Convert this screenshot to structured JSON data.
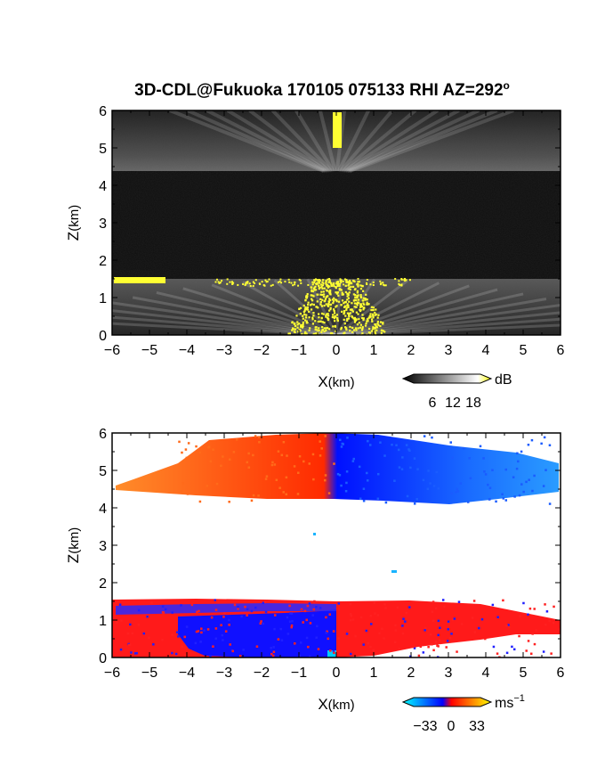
{
  "chart_data": [
    {
      "type": "heatmap",
      "title": "3D-CDL@Fukuoka 170105 075133 RHI AZ=292",
      "title_superscript": "o",
      "xlabel_main": "X",
      "xlabel_unit": "(km)",
      "ylabel_main": "Z",
      "ylabel_unit": "(km)",
      "xlim": [
        -6,
        6
      ],
      "ylim": [
        0,
        6
      ],
      "xticks": [
        "-6",
        "-5",
        "-4",
        "-3",
        "-2",
        "-1",
        "0",
        "1",
        "2",
        "3",
        "4",
        "5",
        "6"
      ],
      "yticks": [
        "0",
        "1",
        "2",
        "3",
        "4",
        "5",
        "6"
      ],
      "colorbar": {
        "unit": "dB",
        "ticks": [
          "6",
          "12",
          "18"
        ],
        "colors": [
          "#000000",
          "#ffffff",
          "#ffff00"
        ]
      },
      "layers": [
        {
          "kind": "noise",
          "z_range": [
            1.5,
            4.4
          ],
          "level": "low"
        },
        {
          "kind": "cloud",
          "z_range": [
            4.4,
            6.0
          ],
          "level": "medium"
        },
        {
          "kind": "boundary-layer",
          "z_range": [
            0.0,
            1.5
          ],
          "level": "high"
        }
      ]
    },
    {
      "type": "heatmap",
      "xlabel_main": "X",
      "xlabel_unit": "(km)",
      "ylabel_main": "Z",
      "ylabel_unit": "(km)",
      "xlim": [
        -6,
        6
      ],
      "ylim": [
        0,
        6
      ],
      "xticks": [
        "-6",
        "-5",
        "-4",
        "-3",
        "-2",
        "-1",
        "0",
        "1",
        "2",
        "3",
        "4",
        "5",
        "6"
      ],
      "yticks": [
        "0",
        "1",
        "2",
        "3",
        "4",
        "5",
        "6"
      ],
      "colorbar": {
        "unit": "ms",
        "unit_superscript": "−1",
        "ticks": [
          "−33",
          "0",
          "33"
        ],
        "colors": [
          "#00ffff",
          "#0000ff",
          "#ff0000",
          "#ffff00"
        ]
      },
      "layers": [
        {
          "kind": "cloud",
          "z_range": [
            4.3,
            6.0
          ],
          "left_color": "#ff7a1a",
          "right_color": "#1a6cff"
        },
        {
          "kind": "boundary-layer",
          "z_range": [
            0.0,
            1.5
          ],
          "left_color": "#0000ff",
          "right_color": "#ff0000"
        }
      ]
    }
  ]
}
